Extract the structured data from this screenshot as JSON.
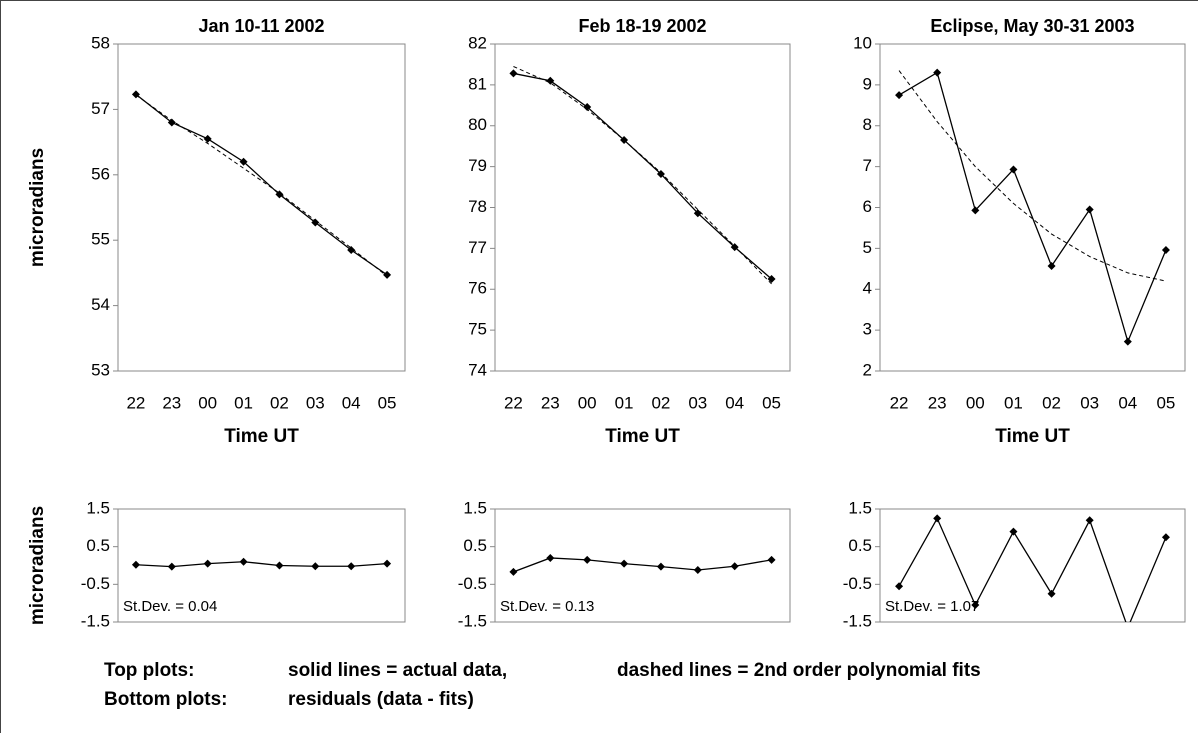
{
  "chart_data": [
    {
      "type": "line",
      "title": "Jan 10-11 2002",
      "xlabel": "Time UT",
      "ylabel": "microradians",
      "categories": [
        "22",
        "23",
        "00",
        "01",
        "02",
        "03",
        "04",
        "05"
      ],
      "series": [
        {
          "color": "#000000",
          "dashed": false,
          "markers": true,
          "values": [
            57.23,
            56.8,
            56.55,
            56.2,
            55.7,
            55.27,
            54.85,
            54.47
          ]
        },
        {
          "color": "#000000",
          "dashed": true,
          "markers": false,
          "values": [
            57.22,
            56.83,
            56.48,
            56.1,
            55.72,
            55.3,
            54.88,
            54.45
          ]
        }
      ],
      "ylim": [
        53,
        58
      ],
      "yticks": [
        53,
        54,
        55,
        56,
        57,
        58
      ]
    },
    {
      "type": "line",
      "title": "Feb 18-19 2002",
      "xlabel": "Time UT",
      "categories": [
        "22",
        "23",
        "00",
        "01",
        "02",
        "03",
        "04",
        "05"
      ],
      "series": [
        {
          "color": "#000000",
          "dashed": false,
          "markers": true,
          "values": [
            81.28,
            81.1,
            80.46,
            79.65,
            78.82,
            77.86,
            77.03,
            76.25
          ]
        },
        {
          "color": "#000000",
          "dashed": true,
          "markers": false,
          "values": [
            81.45,
            81.05,
            80.4,
            79.65,
            78.85,
            77.95,
            77.05,
            76.13
          ]
        }
      ],
      "ylim": [
        74,
        82
      ],
      "yticks": [
        74,
        75,
        76,
        77,
        78,
        79,
        80,
        81,
        82
      ]
    },
    {
      "type": "line",
      "title": "Eclipse, May 30-31 2003",
      "xlabel": "Time UT",
      "categories": [
        "22",
        "23",
        "00",
        "01",
        "02",
        "03",
        "04",
        "05"
      ],
      "series": [
        {
          "color": "#000000",
          "dashed": false,
          "markers": true,
          "values": [
            8.75,
            9.3,
            5.93,
            6.93,
            4.57,
            5.95,
            2.72,
            4.96
          ]
        },
        {
          "color": "#000000",
          "dashed": true,
          "markers": false,
          "values": [
            9.35,
            8.1,
            7.0,
            6.1,
            5.35,
            4.8,
            4.4,
            4.2
          ]
        }
      ],
      "ylim": [
        2,
        10
      ],
      "yticks": [
        2,
        3,
        4,
        5,
        6,
        7,
        8,
        9,
        10
      ]
    },
    {
      "type": "line",
      "ylabel": "microradians",
      "annotation": "St.Dev. = 0.04",
      "series": [
        {
          "color": "#000000",
          "dashed": false,
          "markers": true,
          "values": [
            0.02,
            -0.03,
            0.05,
            0.1,
            0.0,
            -0.02,
            -0.02,
            0.05
          ]
        }
      ],
      "ylim": [
        -1.5,
        1.5
      ],
      "yticks": [
        -1.5,
        -0.5,
        0.5,
        1.5
      ]
    },
    {
      "type": "line",
      "annotation": "St.Dev. = 0.13",
      "series": [
        {
          "color": "#000000",
          "dashed": false,
          "markers": true,
          "values": [
            -0.17,
            0.2,
            0.15,
            0.05,
            -0.03,
            -0.12,
            -0.02,
            0.15
          ]
        }
      ],
      "ylim": [
        -1.5,
        1.5
      ],
      "yticks": [
        -1.5,
        -0.5,
        0.5,
        1.5
      ]
    },
    {
      "type": "line",
      "annotation": "St.Dev. = 1.07",
      "series": [
        {
          "color": "#000000",
          "dashed": false,
          "markers": true,
          "values": [
            -0.55,
            1.25,
            -1.05,
            0.9,
            -0.75,
            1.2,
            -1.65,
            0.75
          ]
        }
      ],
      "ylim": [
        -1.5,
        1.5
      ],
      "yticks": [
        -1.5,
        -0.5,
        0.5,
        1.5
      ]
    }
  ],
  "caption": {
    "rows": [
      [
        "Top plots:",
        "solid lines = actual data,",
        "dashed lines = 2nd order polynomial fits"
      ],
      [
        "Bottom plots:",
        "residuals (data - fits)"
      ]
    ]
  }
}
